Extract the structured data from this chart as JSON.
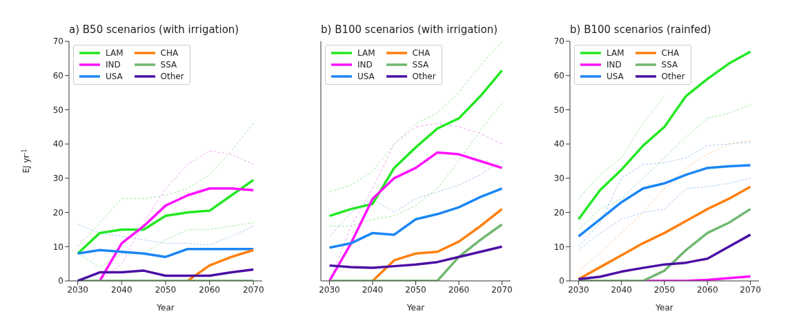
{
  "chart_data": [
    {
      "type": "line",
      "title": "a) B50 scenarios (with irrigation)",
      "xlabel": "Year",
      "ylabel": "EJ yr$^{-1}$",
      "x": [
        2030,
        2035,
        2040,
        2045,
        2050,
        2055,
        2060,
        2065,
        2070
      ],
      "xlim": [
        2028,
        2072
      ],
      "xticks": [
        2030,
        2040,
        2050,
        2060,
        2070
      ],
      "ylim": [
        0,
        70
      ],
      "yticks": [
        0,
        10,
        20,
        30,
        40,
        50,
        60,
        70
      ],
      "legend": "top left",
      "series": [
        {
          "color": "#9be89b",
          "line_style": "dashed",
          "values": [
            10,
            17,
            24,
            24,
            25,
            27,
            31,
            38,
            46
          ]
        },
        {
          "color": "#9be89b",
          "line_style": "dashed",
          "values": [
            8,
            4,
            8,
            8,
            12,
            15,
            15,
            16,
            17
          ]
        },
        {
          "color": "#f3a3f3",
          "line_style": "dashed",
          "values": [
            null,
            0,
            5,
            17,
            27,
            34,
            38,
            37,
            34
          ]
        },
        {
          "color": "#a3c8f3",
          "line_style": "dashed",
          "values": [
            16.5,
            14,
            13,
            12,
            11,
            11,
            10.5,
            13,
            16
          ]
        },
        {
          "name": "LAM",
          "color": "#22e822",
          "values": [
            8,
            14,
            15,
            15,
            19,
            20,
            20.5,
            25,
            29.5
          ]
        },
        {
          "name": "IND",
          "color": "#ff11ff",
          "values": [
            null,
            0,
            11,
            16,
            22,
            25,
            27,
            27,
            26.5
          ]
        },
        {
          "name": "USA",
          "color": "#1a86f5",
          "values": [
            8,
            9,
            8.5,
            8,
            7,
            9.3,
            9.3,
            9.3,
            9.3
          ]
        },
        {
          "name": "CHA",
          "color": "#ff7f0e",
          "values": [
            null,
            null,
            null,
            null,
            null,
            0,
            4.5,
            7,
            9
          ]
        },
        {
          "name": "SSA",
          "color": "#6fb86f",
          "values": [
            0,
            0,
            0,
            0,
            0,
            0,
            0,
            0,
            0
          ]
        },
        {
          "name": "Other",
          "color": "#4b0fa5",
          "values": [
            0,
            2.5,
            2.5,
            3,
            1.5,
            1.5,
            1.5,
            2.5,
            3.3
          ]
        }
      ]
    },
    {
      "type": "line",
      "title": "b) B100 scenarios (with irrigation)",
      "xlabel": "Year",
      "x": [
        2030,
        2035,
        2040,
        2045,
        2050,
        2055,
        2060,
        2065,
        2070
      ],
      "xlim": [
        2028,
        2072
      ],
      "xticks": [
        2030,
        2040,
        2050,
        2060,
        2070
      ],
      "ylim": [
        0,
        70
      ],
      "yticks": [
        0,
        10,
        20,
        30,
        40,
        50,
        60,
        70
      ],
      "tick_labels": "x",
      "legend": "top left",
      "series": [
        {
          "color": "#9be89b",
          "line_style": "dashed",
          "values": [
            26,
            28,
            32,
            40,
            46,
            49,
            55,
            63,
            70
          ]
        },
        {
          "color": "#9be89b",
          "line_style": "dashed",
          "values": [
            16,
            16,
            18,
            19,
            22,
            27,
            35,
            44,
            52
          ]
        },
        {
          "color": "#f3a3f3",
          "line_style": "dashed",
          "values": [
            0,
            16,
            27,
            40,
            45,
            46,
            45,
            43,
            40
          ]
        },
        {
          "color": "#a3c8f3",
          "line_style": "dashed",
          "values": [
            13,
            20,
            24,
            20,
            24,
            26,
            28,
            31,
            35
          ]
        },
        {
          "name": "LAM",
          "color": "#22e822",
          "values": [
            19,
            21,
            22.5,
            33,
            39,
            44.5,
            47.5,
            54,
            61.5
          ]
        },
        {
          "name": "IND",
          "color": "#ff11ff",
          "values": [
            0,
            11,
            24,
            30,
            33,
            37.5,
            37,
            35,
            33
          ]
        },
        {
          "name": "USA",
          "color": "#1a86f5",
          "values": [
            9.7,
            11,
            14,
            13.5,
            18,
            19.5,
            21.5,
            24.5,
            27
          ]
        },
        {
          "name": "CHA",
          "color": "#ff7f0e",
          "values": [
            null,
            null,
            0,
            6,
            8,
            8.5,
            11.5,
            16,
            21
          ]
        },
        {
          "name": "SSA",
          "color": "#6fb86f",
          "values": [
            0,
            0,
            0,
            0,
            0,
            0,
            7,
            12,
            16.5
          ]
        },
        {
          "name": "Other",
          "color": "#4b0fa5",
          "values": [
            4.5,
            4,
            3.8,
            4.3,
            4.8,
            5.5,
            7,
            8.5,
            10
          ]
        }
      ]
    },
    {
      "type": "line",
      "title": "b) B100 scenarios (rainfed)",
      "xlabel": "Year",
      "x": [
        2030,
        2035,
        2040,
        2045,
        2050,
        2055,
        2060,
        2065,
        2070
      ],
      "xlim": [
        2028,
        2072
      ],
      "xticks": [
        2030,
        2040,
        2050,
        2060,
        2070
      ],
      "ylim": [
        0,
        70
      ],
      "yticks": [
        0,
        10,
        20,
        30,
        40,
        50,
        60,
        70
      ],
      "legend": "top left",
      "series": [
        {
          "color": "#9be89b",
          "line_style": "dashed",
          "values": [
            24,
            31,
            36,
            46,
            54,
            null,
            null,
            null,
            null
          ]
        },
        {
          "color": "#9be89b",
          "line_style": "dashed",
          "values": [
            15,
            21,
            24,
            30,
            36,
            42,
            47.5,
            49,
            51.5
          ]
        },
        {
          "color": "#a3c8f3",
          "line_style": "dashed",
          "values": [
            10,
            17,
            30,
            34,
            34.5,
            36,
            39.5,
            40,
            40.5
          ]
        },
        {
          "color": "#a3c8f3",
          "line_style": "dashed",
          "values": [
            9,
            14,
            18,
            20,
            21,
            27,
            27.5,
            28.5,
            30
          ]
        },
        {
          "color": "#ffc996",
          "line_style": "dashed",
          "values": [
            3,
            8,
            14,
            20,
            27,
            33,
            37,
            40,
            41
          ]
        },
        {
          "name": "LAM",
          "color": "#22e822",
          "values": [
            18,
            26.5,
            32.5,
            39.5,
            45,
            54,
            59,
            63.5,
            67
          ]
        },
        {
          "name": "IND",
          "color": "#ff11ff",
          "values": [
            null,
            null,
            null,
            0,
            0,
            0,
            0.3,
            0.8,
            1.3
          ]
        },
        {
          "name": "USA",
          "color": "#1a86f5",
          "values": [
            13,
            18,
            23,
            27,
            28.5,
            31,
            33,
            33.5,
            33.8
          ]
        },
        {
          "name": "CHA",
          "color": "#ff7f0e",
          "values": [
            0.5,
            4,
            7.5,
            11,
            14,
            17.5,
            21,
            24,
            27.5
          ]
        },
        {
          "name": "SSA",
          "color": "#6fb86f",
          "values": [
            0,
            0,
            0,
            0,
            3,
            9,
            14,
            17,
            21
          ]
        },
        {
          "name": "Other",
          "color": "#4b0fa5",
          "values": [
            0.5,
            1.2,
            2.7,
            3.8,
            4.8,
            5.3,
            6.5,
            10,
            13.5
          ]
        }
      ]
    }
  ]
}
